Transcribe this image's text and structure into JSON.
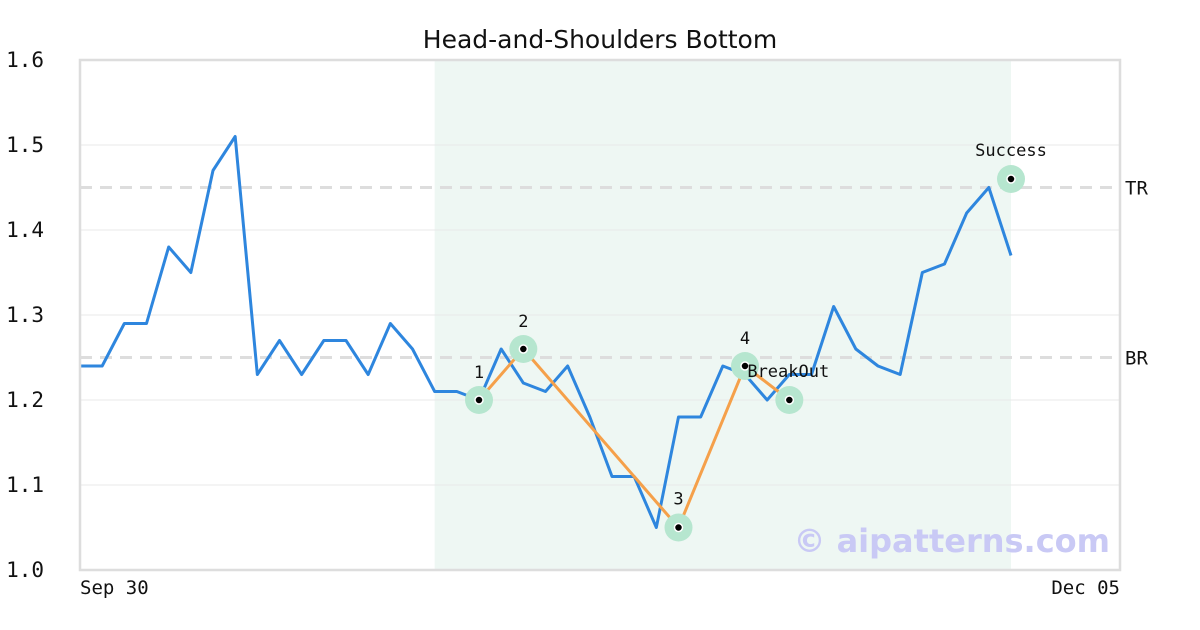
{
  "chart_data": {
    "type": "line",
    "title": "Head-and-Shoulders Bottom",
    "xlabel": "",
    "ylabel": "",
    "ylim": [
      1.0,
      1.6
    ],
    "y_ticks": [
      "1.0",
      "1.1",
      "1.2",
      "1.3",
      "1.4",
      "1.5",
      "1.6"
    ],
    "x_tick_labels": [
      "Sep 30",
      "Dec 05"
    ],
    "grid": true,
    "colors": {
      "price": "#2e86de",
      "pattern": "#f5a04a",
      "highlight": "#eef7f3",
      "marker_halo": "#b6e6cf",
      "reference": "#dddddd",
      "watermark": "#c9c9f5",
      "frame": "#dddddd"
    },
    "series": [
      {
        "values": [
          1.24,
          1.24,
          1.29,
          1.29,
          1.38,
          1.35,
          1.47,
          1.51,
          1.23,
          1.27,
          1.23,
          1.27,
          1.27,
          1.23,
          1.29,
          1.26,
          1.21,
          1.21,
          1.2,
          1.26,
          1.22,
          1.21,
          1.24,
          1.18,
          1.11,
          1.11,
          1.05,
          1.18,
          1.18,
          1.24,
          1.23,
          1.2,
          1.23,
          1.23,
          1.31,
          1.26,
          1.24,
          1.23,
          1.35,
          1.36,
          1.42,
          1.45,
          1.37
        ]
      }
    ],
    "highlight_range": [
      16,
      43
    ],
    "pattern_points": [
      {
        "label": "1",
        "index": 18,
        "value": 1.2
      },
      {
        "label": "2",
        "index": 20,
        "value": 1.26
      },
      {
        "label": "3",
        "index": 27,
        "value": 1.05
      },
      {
        "label": "4",
        "index": 30,
        "value": 1.24
      },
      {
        "label": "BreakOut",
        "index": 32,
        "value": 1.2
      }
    ],
    "success_point": {
      "label": "Success",
      "index": 42,
      "value": 1.46
    },
    "reference_lines": [
      {
        "label": "TR",
        "value": 1.45
      },
      {
        "label": "BR",
        "value": 1.25
      }
    ],
    "watermark": "© aipatterns.com"
  }
}
